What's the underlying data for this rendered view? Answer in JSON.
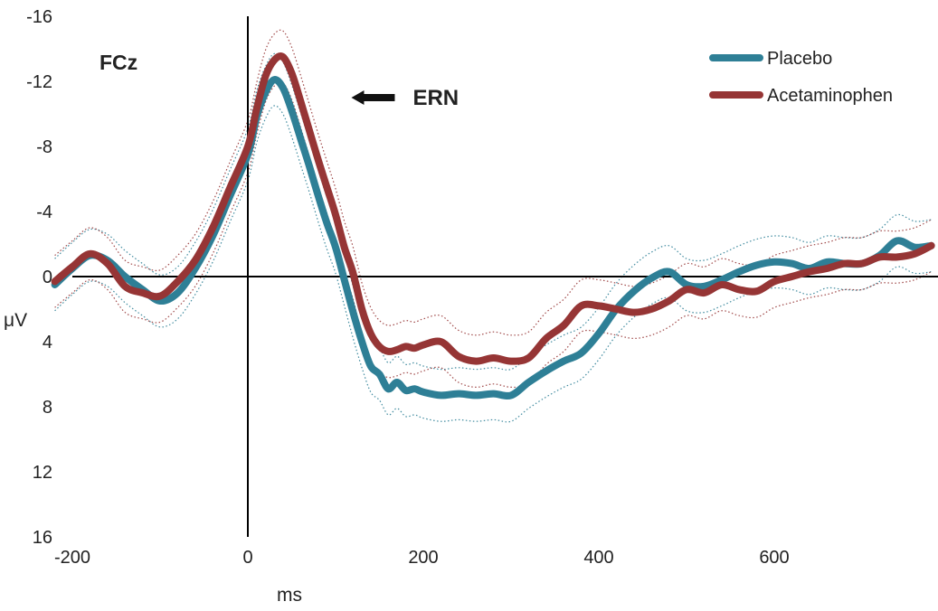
{
  "chart_data": {
    "type": "line",
    "panel_label": "FCz",
    "xlabel": "ms",
    "ylabel": "μV",
    "xlim": [
      -222,
      779
    ],
    "ylim": [
      -16,
      16
    ],
    "y_inverted": true,
    "x_ticks": [
      -200,
      0,
      200,
      400,
      600
    ],
    "y_ticks": [
      -16,
      -12,
      -8,
      -4,
      0,
      4,
      8,
      12,
      16
    ],
    "grid": false,
    "legend_position": "top-right",
    "annotation": {
      "text": "ERN",
      "x": 118,
      "y": -11,
      "arrow": "left"
    },
    "series": [
      {
        "name": "Placebo",
        "color": "#2e7f96",
        "x": [
          -220,
          -200,
          -180,
          -160,
          -140,
          -120,
          -100,
          -80,
          -60,
          -40,
          -20,
          0,
          10,
          20,
          30,
          40,
          50,
          60,
          70,
          80,
          90,
          100,
          110,
          120,
          130,
          140,
          150,
          160,
          170,
          180,
          190,
          200,
          220,
          240,
          260,
          280,
          300,
          320,
          340,
          360,
          380,
          400,
          420,
          440,
          460,
          480,
          500,
          520,
          540,
          560,
          580,
          600,
          620,
          640,
          660,
          680,
          700,
          720,
          740,
          760,
          779
        ],
        "y": [
          0.5,
          -0.5,
          -1.3,
          -1.0,
          0.0,
          0.8,
          1.5,
          1.0,
          -0.5,
          -2.5,
          -5.0,
          -7.5,
          -9.8,
          -11.3,
          -12.1,
          -11.6,
          -10.2,
          -8.5,
          -6.8,
          -5.0,
          -3.3,
          -1.8,
          0.2,
          2.2,
          4.0,
          5.5,
          6.0,
          6.9,
          6.5,
          7.0,
          6.9,
          7.1,
          7.3,
          7.2,
          7.3,
          7.2,
          7.3,
          6.5,
          5.8,
          5.2,
          4.7,
          3.5,
          2.0,
          0.9,
          0.1,
          -0.3,
          0.5,
          0.6,
          0.2,
          -0.3,
          -0.7,
          -0.9,
          -0.8,
          -0.5,
          -0.9,
          -0.8,
          -0.8,
          -1.3,
          -2.2,
          -1.8,
          -1.9
        ]
      },
      {
        "name": "Acetaminophen",
        "color": "#963535",
        "x": [
          -220,
          -200,
          -180,
          -160,
          -140,
          -120,
          -100,
          -80,
          -60,
          -40,
          -20,
          0,
          10,
          20,
          30,
          40,
          50,
          60,
          70,
          80,
          90,
          100,
          110,
          120,
          130,
          140,
          150,
          160,
          170,
          180,
          190,
          200,
          220,
          240,
          260,
          280,
          300,
          320,
          340,
          360,
          380,
          400,
          420,
          440,
          460,
          480,
          500,
          520,
          540,
          560,
          580,
          600,
          620,
          640,
          660,
          680,
          700,
          720,
          740,
          760,
          779
        ],
        "y": [
          0.3,
          -0.6,
          -1.4,
          -0.8,
          0.6,
          1.0,
          1.2,
          0.3,
          -1.0,
          -3.0,
          -5.5,
          -8.0,
          -10.3,
          -12.3,
          -13.3,
          -13.5,
          -12.5,
          -10.8,
          -9.0,
          -7.2,
          -5.5,
          -3.8,
          -1.8,
          -0.2,
          2.0,
          3.5,
          4.3,
          4.6,
          4.5,
          4.3,
          4.4,
          4.2,
          4.0,
          4.9,
          5.2,
          5.0,
          5.2,
          5.0,
          3.8,
          3.0,
          1.8,
          1.8,
          2.0,
          2.2,
          2.0,
          1.5,
          0.8,
          1.0,
          0.5,
          0.8,
          0.9,
          0.3,
          0.0,
          -0.3,
          -0.5,
          -0.8,
          -0.8,
          -1.2,
          -1.2,
          -1.4,
          -1.9
        ]
      }
    ]
  }
}
